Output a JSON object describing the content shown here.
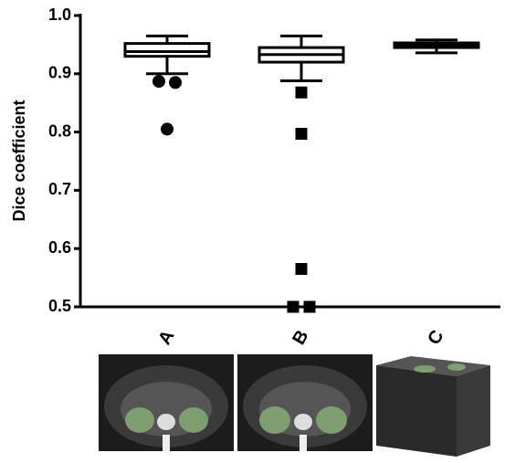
{
  "chart_data": {
    "type": "box",
    "ylabel": "Dice coefficient",
    "categories": [
      "A",
      "B",
      "C"
    ],
    "boxes": [
      {
        "whisker_low": 0.9,
        "q1": 0.93,
        "median": 0.938,
        "q3": 0.952,
        "whisker_high": 0.965,
        "marker": "circle",
        "outliers": [
          0.887,
          0.885,
          0.805
        ]
      },
      {
        "whisker_low": 0.888,
        "q1": 0.92,
        "median": 0.933,
        "q3": 0.945,
        "whisker_high": 0.965,
        "marker": "square",
        "outliers": [
          0.868,
          0.797,
          0.565,
          0.5,
          0.5
        ]
      },
      {
        "whisker_low": 0.936,
        "q1": 0.945,
        "median": 0.949,
        "q3": 0.953,
        "whisker_high": 0.958,
        "outliers": []
      }
    ],
    "color": "#000000",
    "ylim": [
      0.5,
      1.0
    ],
    "yticks": [
      0.5,
      0.6,
      0.7,
      0.8,
      0.9,
      {
        "value": 1.0,
        "label": "1.0"
      }
    ]
  }
}
